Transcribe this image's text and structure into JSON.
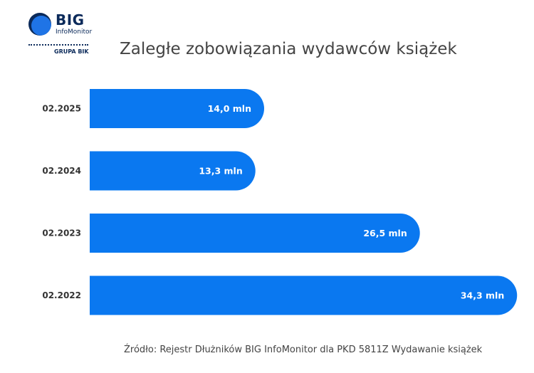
{
  "logo": {
    "main": "BIG",
    "sub": "InfoMonitor",
    "group": "GRUPA BIK"
  },
  "chart_data": {
    "type": "bar",
    "orientation": "horizontal",
    "title": "Zaległe zobowiązania wydawców książek",
    "categories": [
      "02.2025",
      "02.2024",
      "02.2023",
      "02.2022"
    ],
    "values": [
      14.0,
      13.3,
      26.5,
      34.3
    ],
    "value_labels": [
      "14,0 mln",
      "13,3 mln",
      "26,5 mln",
      "34,3 mln"
    ],
    "unit": "mln",
    "bar_color": "#0a78f0",
    "xlim": [
      0,
      35
    ],
    "grid": false,
    "legend": "none"
  },
  "source": "Źródło: Rejestr Dłużników BIG InfoMonitor dla PKD 5811Z Wydawanie książek"
}
